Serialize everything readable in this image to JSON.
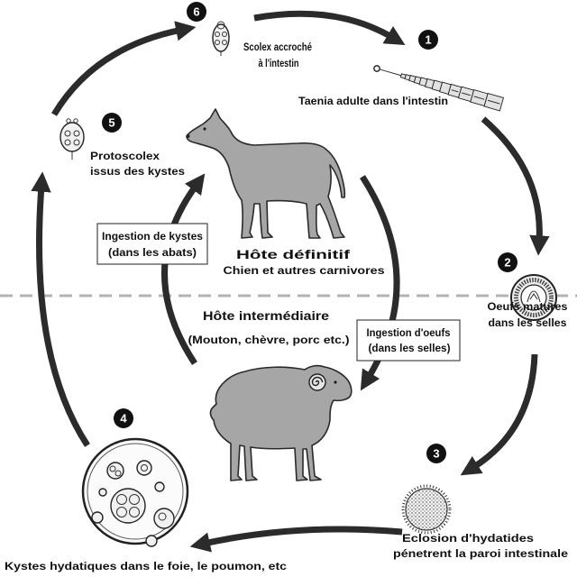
{
  "diagram": {
    "stages": [
      {
        "number": "1",
        "illustration": "adult-tapeworm-icon",
        "label_lines": [
          "Taenia adulte dans l'intestin"
        ]
      },
      {
        "number": "2",
        "illustration": "mature-egg-icon",
        "label_lines": [
          "Oeufs matures",
          "dans les selles"
        ]
      },
      {
        "number": "3",
        "illustration": "hatching-oncosphere-icon",
        "label_lines": [
          "Eclosion d'hydatides",
          "pénetrent la paroi intestinale"
        ]
      },
      {
        "number": "4",
        "illustration": "hydatid-cyst-icon",
        "label_lines": [
          "Kystes hydatiques dans le foie, le poumon, etc"
        ]
      },
      {
        "number": "5",
        "illustration": "protoscolex-icon",
        "label_lines": [
          "Protoscolex",
          "issus des kystes"
        ]
      },
      {
        "number": "6",
        "illustration": "scolex-icon",
        "label_lines": [
          "Scolex accroché",
          "à l'intestin"
        ]
      }
    ],
    "definitive_host": {
      "illustration": "dog-silhouette",
      "title": "Hôte définitif",
      "subtitle": "Chien et autres carnivores"
    },
    "intermediate_host": {
      "illustration": "sheep-silhouette",
      "title": "Hôte intermédiaire",
      "subtitle": "(Mouton, chèvre, porc etc.)"
    },
    "transitions": {
      "to_definitive_host": [
        "Ingestion de kystes",
        "(dans les abats)"
      ],
      "to_intermediate_host": [
        "Ingestion d'oeufs",
        "(dans les selles)"
      ]
    },
    "colors": {
      "arrow": "#2b2b2b",
      "animal": "#a6a6a6",
      "divider": "#b3b3b3",
      "badge": "#111111",
      "text": "#111111"
    }
  }
}
